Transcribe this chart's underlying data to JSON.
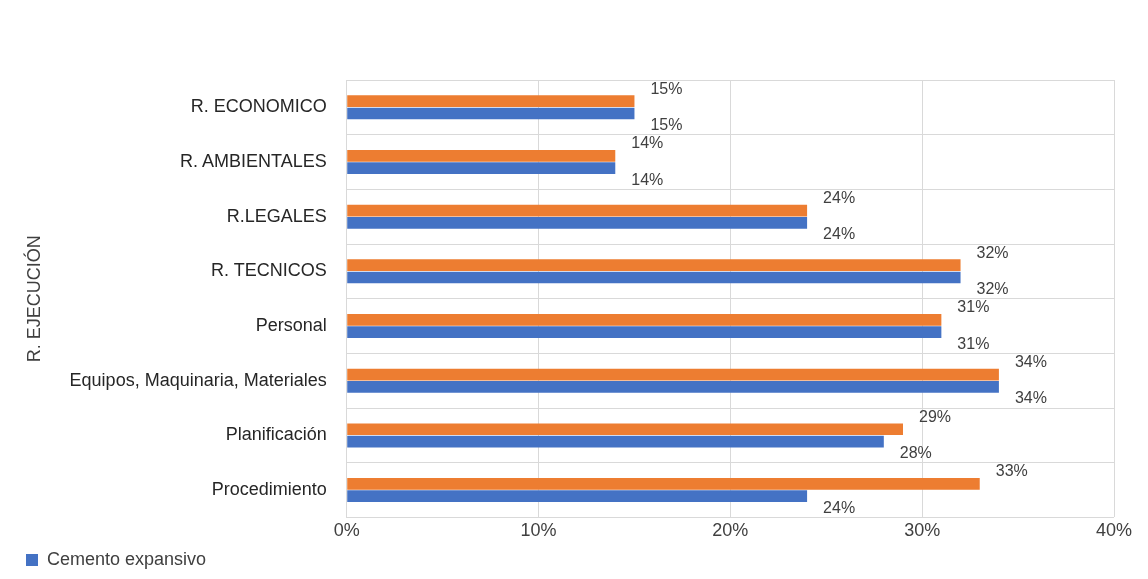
{
  "chart_data": {
    "type": "bar",
    "orientation": "horizontal",
    "ylabel": "R. EJECUCIÓN",
    "categories": [
      "R. ECONOMICO",
      "R. AMBIENTALES",
      "R.LEGALES",
      "R. TECNICOS",
      "Personal",
      "Equipos, Maquinaria, Materiales",
      "Planificación",
      "Procedimiento"
    ],
    "series": [
      {
        "color": "#ed7d31",
        "values": [
          15,
          14,
          24,
          32,
          31,
          34,
          29,
          33
        ],
        "value_labels": [
          "15%",
          "14%",
          "24%",
          "32%",
          "31%",
          "34%",
          "29%",
          "33%"
        ]
      },
      {
        "name": "Cemento expansivo",
        "color": "#4472c4",
        "values": [
          15,
          14,
          24,
          32,
          31,
          34,
          28,
          24
        ],
        "value_labels": [
          "15%",
          "14%",
          "24%",
          "32%",
          "31%",
          "34%",
          "28%",
          "24%"
        ]
      }
    ],
    "xlim": [
      0,
      40
    ],
    "xticks": [
      {
        "value": 0,
        "label": "0%"
      },
      {
        "value": 10,
        "label": "10%"
      },
      {
        "value": 20,
        "label": "20%"
      },
      {
        "value": 30,
        "label": "30%"
      },
      {
        "value": 40,
        "label": "40%"
      }
    ],
    "grid": true,
    "legend": "bottom left"
  }
}
